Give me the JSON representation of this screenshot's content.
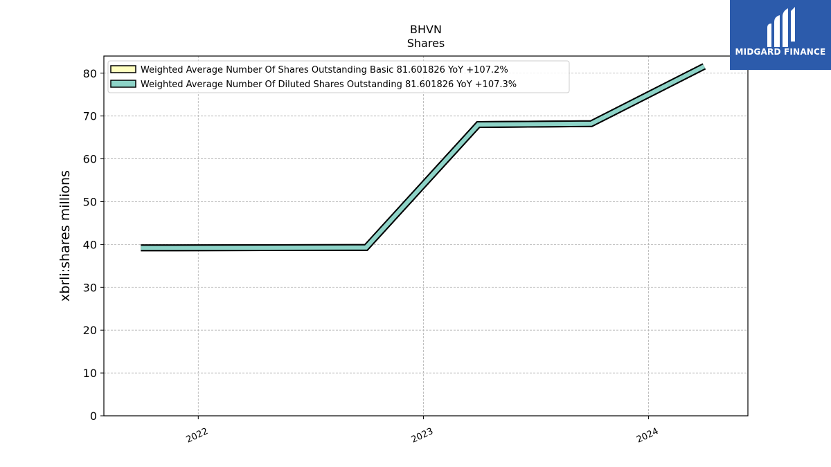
{
  "brand": {
    "name": "MIDGARD FINANCE",
    "logo_bg": "#2c5bab"
  },
  "chart_data": {
    "type": "line",
    "title": "BHVN",
    "subtitle": "Shares",
    "xlabel": "",
    "ylabel": "xbrli:shares millions",
    "x_ticks": [
      "2022",
      "2023",
      "2024"
    ],
    "x_range": [
      "2021-08-01",
      "2024-06-10"
    ],
    "ylim": [
      0,
      84
    ],
    "y_ticks": [
      0,
      10,
      20,
      30,
      40,
      50,
      60,
      70,
      80
    ],
    "grid": true,
    "legend_position": "top-left",
    "series": [
      {
        "name": "Weighted Average Number Of Shares Outstanding Basic",
        "legend_label": "Weighted Average Number Of Shares Outstanding Basic  81.601826 YoY +107.2%",
        "color": "#ffffbf",
        "x": [
          "2021-09-30",
          "2022-09-30",
          "2023-03-31",
          "2023-09-30",
          "2024-03-31"
        ],
        "y": [
          39.2,
          39.3,
          68.0,
          68.2,
          81.6
        ]
      },
      {
        "name": "Weighted Average Number Of Diluted Shares Outstanding",
        "legend_label": "Weighted Average Number Of Diluted Shares Outstanding  81.601826 YoY +107.3%",
        "color": "#8dd3c7",
        "x": [
          "2021-09-30",
          "2022-09-30",
          "2023-03-31",
          "2023-09-30",
          "2024-03-31"
        ],
        "y": [
          39.2,
          39.3,
          68.0,
          68.2,
          81.6
        ]
      }
    ]
  }
}
